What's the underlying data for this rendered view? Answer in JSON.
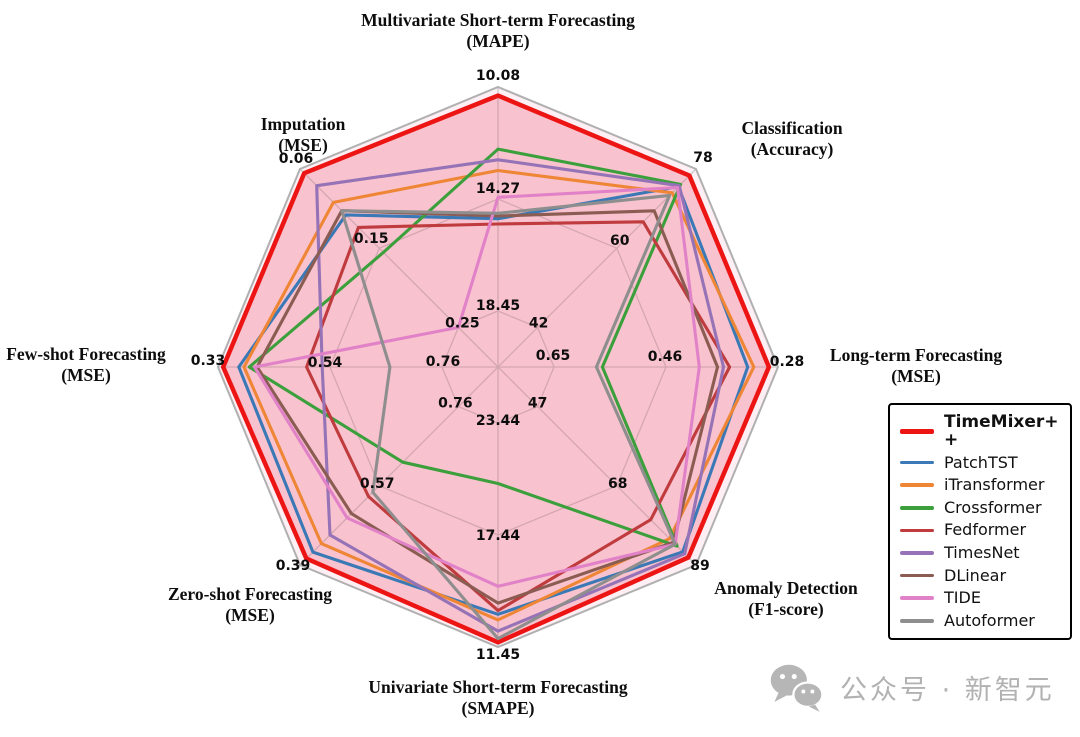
{
  "chart_data": {
    "type": "radar",
    "rings": [
      1.0,
      0.6,
      0.2
    ],
    "grid": true,
    "legend_position": "right",
    "outer_fill": "#fdeff4",
    "hero_fill": "rgba(240,90,120,0.30)",
    "grid_color": "#c9c9c9",
    "frame_color": "#b0b0b0",
    "axes": [
      {
        "label": "Multivariate Short-term Forecasting",
        "metric": "(MAPE)",
        "better": "lower",
        "ticks": [
          "10.08",
          "14.27",
          "18.45"
        ]
      },
      {
        "label": "Classification",
        "metric": "(Accuracy)",
        "better": "higher",
        "ticks": [
          "78",
          "60",
          "42"
        ]
      },
      {
        "label": "Long-term Forecasting",
        "metric": "(MSE)",
        "better": "lower",
        "ticks": [
          "0.28",
          "0.46",
          "0.65"
        ]
      },
      {
        "label": "Anomaly Detection",
        "metric": "(F1-score)",
        "better": "higher",
        "ticks": [
          "89",
          "68",
          "47"
        ]
      },
      {
        "label": "Univariate Short-term Forecasting",
        "metric": "(SMAPE)",
        "better": "lower",
        "ticks": [
          "11.45",
          "17.44",
          "23.44"
        ]
      },
      {
        "label": "Zero-shot Forecasting",
        "metric": "(MSE)",
        "better": "lower",
        "ticks": [
          "0.39",
          "0.57",
          "0.76"
        ]
      },
      {
        "label": "Few-shot Forecasting",
        "metric": "(MSE)",
        "better": "lower",
        "ticks": [
          "0.33",
          "0.54",
          "0.76"
        ]
      },
      {
        "label": "Imputation",
        "metric": "(MSE)",
        "better": "lower",
        "ticks": [
          "0.06",
          "0.15",
          "0.25"
        ]
      }
    ],
    "series": [
      {
        "name": "TimeMixer+ +",
        "color": "#ed1414",
        "values": [
          10.4,
          76.5,
          0.295,
          87.0,
          11.7,
          0.405,
          0.34,
          0.065
        ]
      },
      {
        "name": "PatchTST",
        "color": "#3a79b6",
        "values": [
          15.0,
          74.0,
          0.33,
          85.5,
          13.2,
          0.42,
          0.37,
          0.115
        ]
      },
      {
        "name": "iTransformer",
        "color": "#ef8636",
        "values": [
          13.2,
          72.6,
          0.32,
          82.0,
          12.9,
          0.44,
          0.38,
          0.1
        ]
      },
      {
        "name": "Crossformer",
        "color": "#3ba03b",
        "values": [
          12.4,
          74.5,
          0.57,
          84.0,
          20.2,
          0.63,
          0.39,
          0.16
        ]
      },
      {
        "name": "Fedformer",
        "color": "#bf3b3d",
        "values": [
          15.2,
          66.0,
          0.36,
          77.0,
          13.4,
          0.55,
          0.5,
          0.13
        ]
      },
      {
        "name": "TimesNet",
        "color": "#9673b6",
        "values": [
          12.8,
          74.2,
          0.37,
          86.0,
          12.3,
          0.46,
          0.53,
          0.08
        ]
      },
      {
        "name": "DLinear",
        "color": "#8a5c52",
        "values": [
          14.9,
          68.5,
          0.38,
          83.0,
          13.8,
          0.51,
          0.405,
          0.11
        ]
      },
      {
        "name": "TIDE",
        "color": "#e182c8",
        "values": [
          14.2,
          73.8,
          0.41,
          83.5,
          14.7,
          0.5,
          0.4,
          0.25
        ]
      },
      {
        "name": "Autoformer",
        "color": "#8e8e8e",
        "values": [
          14.8,
          72.0,
          0.58,
          83.5,
          11.9,
          0.56,
          0.66,
          0.11
        ]
      }
    ]
  },
  "watermark": {
    "icon": "wechat-icon",
    "text": "公众号 · 新智元"
  }
}
